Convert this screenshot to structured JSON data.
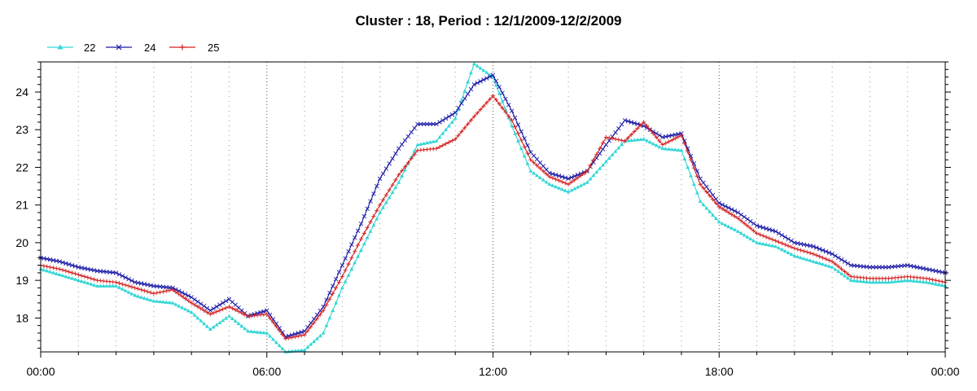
{
  "chart_data": {
    "type": "line",
    "title": "Cluster : 18, Period : 12/1/2009-12/2/2009",
    "xlabel": "",
    "ylabel": "",
    "x_tick_labels": [
      "00:00",
      "06:00",
      "12:00",
      "18:00",
      "00:00"
    ],
    "y_ticks": [
      18,
      19,
      20,
      21,
      22,
      23,
      24
    ],
    "xlim_hours": [
      0,
      24
    ],
    "ylim": [
      17.1,
      24.8
    ],
    "grid": "dotted",
    "legend_position": "top-left",
    "x_hours": [
      0,
      0.5,
      1,
      1.5,
      2,
      2.5,
      3,
      3.5,
      4,
      4.5,
      5,
      5.5,
      6,
      6.5,
      7,
      7.5,
      8,
      8.5,
      9,
      9.5,
      10,
      10.5,
      11,
      11.5,
      12,
      12.5,
      13,
      13.5,
      14,
      14.5,
      15,
      15.5,
      16,
      16.5,
      17,
      17.5,
      18,
      18.5,
      19,
      19.5,
      20,
      20.5,
      21,
      21.5,
      22,
      22.5,
      23,
      23.5,
      24
    ],
    "series": [
      {
        "name": "22",
        "color": "#33d6d6",
        "marker": "triangle",
        "values": [
          19.3,
          19.15,
          19.0,
          18.85,
          18.85,
          18.6,
          18.45,
          18.4,
          18.15,
          17.7,
          18.05,
          17.65,
          17.6,
          17.1,
          17.15,
          17.6,
          18.8,
          19.8,
          20.8,
          21.6,
          22.6,
          22.7,
          23.3,
          24.75,
          24.4,
          23.1,
          21.9,
          21.55,
          21.35,
          21.6,
          22.15,
          22.7,
          22.75,
          22.5,
          22.45,
          21.1,
          20.55,
          20.3,
          20.0,
          19.9,
          19.65,
          19.5,
          19.35,
          19.0,
          18.95,
          18.95,
          19.0,
          18.95,
          18.85
        ]
      },
      {
        "name": "24",
        "color": "#1a1aa6",
        "marker": "x",
        "values": [
          19.6,
          19.5,
          19.35,
          19.25,
          19.2,
          18.95,
          18.85,
          18.8,
          18.55,
          18.2,
          18.5,
          18.05,
          18.2,
          17.5,
          17.65,
          18.3,
          19.4,
          20.5,
          21.7,
          22.5,
          23.15,
          23.15,
          23.45,
          24.2,
          24.45,
          23.5,
          22.4,
          21.85,
          21.7,
          21.9,
          22.6,
          23.25,
          23.1,
          22.8,
          22.9,
          21.7,
          21.05,
          20.8,
          20.45,
          20.3,
          20.0,
          19.9,
          19.7,
          19.4,
          19.35,
          19.35,
          19.4,
          19.3,
          19.2
        ]
      },
      {
        "name": "25",
        "color": "#d42020",
        "marker": "plus",
        "values": [
          19.4,
          19.3,
          19.15,
          19.0,
          18.95,
          18.8,
          18.65,
          18.75,
          18.4,
          18.1,
          18.3,
          18.05,
          18.1,
          17.45,
          17.55,
          18.2,
          19.1,
          20.1,
          21.0,
          21.8,
          22.45,
          22.5,
          22.75,
          23.35,
          23.9,
          23.25,
          22.2,
          21.75,
          21.55,
          21.9,
          22.8,
          22.7,
          23.2,
          22.6,
          22.85,
          21.55,
          20.95,
          20.65,
          20.25,
          20.05,
          19.85,
          19.7,
          19.5,
          19.1,
          19.05,
          19.05,
          19.1,
          19.05,
          18.95
        ]
      }
    ]
  }
}
